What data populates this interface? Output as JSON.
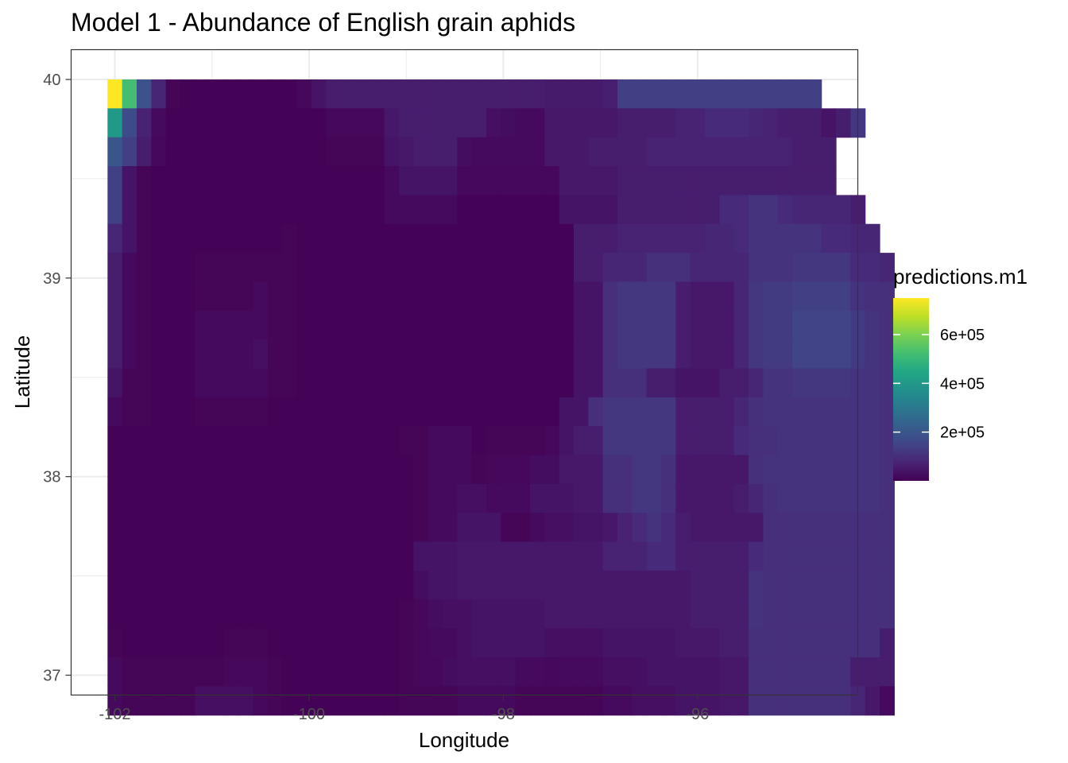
{
  "chart_data": {
    "type": "heatmap",
    "title": "Model 1 - Abundance of English grain aphids",
    "xlabel": "Longitude",
    "ylabel": "Latitude",
    "xlim": [
      -102.45,
      -94.35
    ],
    "ylim": [
      36.9,
      40.15
    ],
    "x_ticks": [
      -102,
      -100,
      -98,
      -96
    ],
    "y_ticks": [
      37,
      38,
      39,
      40
    ],
    "x_tick_labels": [
      "-102",
      "-100",
      "-98",
      "-96"
    ],
    "y_tick_labels": [
      "37",
      "38",
      "39",
      "40"
    ],
    "grid": true,
    "legend": {
      "title": "predictions.m1",
      "position": "right",
      "range": [
        0,
        750000
      ],
      "breaks": [
        200000,
        400000,
        600000
      ],
      "break_labels": [
        "2e+05",
        "4e+05",
        "6e+05"
      ],
      "palette": "viridis"
    },
    "grid_cells": {
      "x_start": -102.075,
      "x_step": 0.15,
      "y_top": 40.0,
      "y_step": 0.1455,
      "value_unit": 1000,
      "rows": [
        "750 520 190 80 10 5 5 5 5 5 5 5 5 15 40 60 60 60 60 60 60 60 60 60 60 60 60 60 60 60 55 55 55 55 65 140 140 140 140 140 140 140 140 140 140 140 140 140 140 -1 -1 -1 -1 -1",
        "400 170 70 20 5 5 5 5 5 5 5 5 5 5 5 15 15 15 15 50 60 60 60 60 60 60 30 25 20 20 50 50 50 50 50 60 60 60 60 70 70 90 90 90 80 70 60 60 60 40 60 120 -1 -1",
        "200 140 60 15 5 5 5 5 5 5 5 5 5 5 5 10 10 10 10 40 50 60 60 60 25 20 20 20 20 20 50 50 50 60 60 60 60 70 70 70 70 70 70 70 70 70 70 60 60 60 -1 -1 -1 -1",
        "140 40 10 5 5 5 5 5 5 5 5 5 5 5 5 5 5 5 5 20 40 40 40 40 15 15 15 15 15 15 15 50 50 50 50 60 60 60 60 60 60 60 60 60 60 60 60 60 60 60 -1 -1 -1 -1",
        "140 40 10 5 5 5 5 5 5 5 5 5 5 5 5 5 5 5 5 20 20 20 20 20 5 5 5 5 5 5 5 40 40 40 40 60 60 60 60 60 60 60 90 90 110 110 90 80 80 80 80 60 -1 -1",
        "80 40 10 5 5 5 5 5 5 5 5 5 10 5 5 5 5 5 5 5 5 5 5 5 5 5 5 5 5 5 5 5 60 60 60 70 70 70 70 70 70 80 80 90 110 110 110 110 110 90 90 80 80 -1",
        "60 20 10 5 5 5 10 10 10 10 10 10 10 5 5 5 5 5 5 5 5 5 5 5 5 5 5 5 5 5 5 5 60 60 80 80 80 100 100 100 80 80 80 80 110 110 110 120 120 120 120 90 90 80",
        "60 20 10 5 5 5 10 10 10 10 20 10 10 5 5 5 5 5 5 5 5 5 5 5 5 5 5 5 5 5 5 5 40 40 100 120 120 120 120 60 50 50 50 80 120 130 130 140 140 140 140 110 100 100",
        "60 20 10 5 5 5 20 20 20 20 20 10 10 5 5 5 5 5 5 5 5 5 5 5 5 5 5 5 5 5 5 5 40 40 100 120 120 120 120 60 50 50 50 80 120 130 130 150 150 150 150 130 110 100",
        "60 20 10 5 5 5 20 20 20 20 30 10 10 5 5 5 5 5 5 5 5 5 5 5 5 5 5 5 5 5 5 5 40 40 100 120 120 120 120 60 50 50 50 80 120 130 130 150 150 150 150 130 110 100",
        "40 10 10 5 5 5 20 20 20 20 20 10 10 5 5 5 5 5 5 5 5 5 5 5 5 5 5 5 5 5 5 5 40 40 100 100 100 60 60 40 40 40 60 60 80 110 110 120 120 120 120 110 110 100",
        "20 10 10 5 5 5 10 10 10 10 10 5 5 5 5 5 5 5 5 5 5 5 5 5 5 5 5 5 5 5 5 40 40 100 120 120 120 120 120 60 60 60 60 80 100 110 110 110 110 110 110 110 110 100",
        "5 5 5 5 5 5 5 5 5 5 5 5 5 5 5 5 5 5 5 5 10 10 20 20 20 5 10 10 10 10 15 40 60 60 120 120 120 120 120 60 60 60 60 90 100 100 110 110 110 110 110 110 110 100",
        "5 5 5 5 5 5 5 5 5 5 5 5 5 5 5 5 5 5 5 5 5 10 20 20 20 10 15 15 15 25 25 50 50 50 100 100 120 120 100 50 50 50 50 50 100 110 110 110 110 110 110 110 110 100",
        "5 5 5 5 5 5 5 5 5 5 5 5 5 5 5 5 5 5 5 5 5 10 20 20 30 30 20 20 20 40 40 40 50 50 100 100 120 120 100 50 50 50 50 60 80 100 110 110 110 110 110 110 110 100",
        "5 5 5 5 5 5 5 5 5 5 5 5 5 5 5 5 5 5 5 5 5 10 20 20 40 40 40 10 10 20 30 30 40 40 50 70 90 110 90 60 50 50 50 50 50 100 100 100 100 100 100 100 100 100",
        "5 5 5 5 5 5 5 5 5 5 5 5 5 5 5 5 5 5 5 5 5 40 40 40 50 50 50 50 50 50 50 50 50 50 70 70 70 90 90 60 60 60 60 60 90 100 100 100 100 100 100 100 100 100",
        "5 5 5 5 5 5 5 5 5 5 5 5 5 5 5 5 5 5 5 5 5 25 40 40 50 50 50 50 50 50 50 50 50 50 50 50 50 50 50 50 60 60 60 60 110 100 100 100 100 100 100 100 100 100",
        "5 5 5 5 5 5 5 5 5 5 5 5 5 5 5 5 5 5 5 5 10 15 25 30 30 40 40 40 40 40 50 50 50 50 50 50 50 50 50 50 60 60 60 60 110 100 100 100 100 100 100 100 100 100",
        "10 5 5 5 5 5 5 5 10 10 10 5 5 5 5 5 5 5 5 5 10 15 20 20 30 40 40 40 40 40 30 30 30 30 40 40 40 40 40 50 50 50 60 60 100 100 100 100 100 100 100 100 100 60",
        "20 10 10 10 10 10 10 10 15 15 15 10 5 5 5 5 5 5 5 5 10 15 15 25 30 30 30 30 20 20 15 20 20 20 30 30 30 40 40 40 40 40 50 50 100 100 100 100 100 100 100 60 60 60",
        "20 10 10 10 10 10 30 30 30 30 15 10 5 5 5 5 5 5 5 5 10 10 10 10 20 20 20 20 10 10 10 10 10 10 20 20 30 30 30 40 40 40 50 50 100 100 100 100 100 100 100 80 50 20"
      ]
    }
  }
}
